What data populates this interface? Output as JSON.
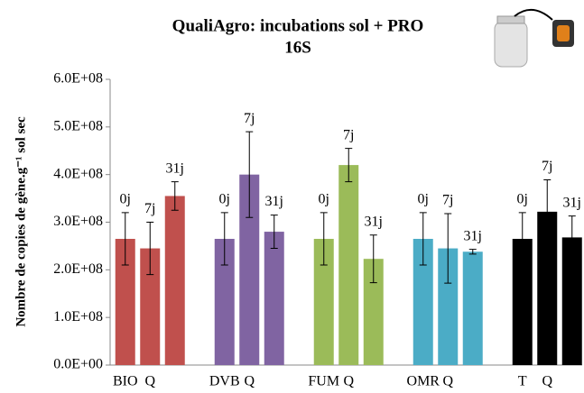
{
  "chart_data": {
    "type": "bar",
    "title": "QualiAgro:  incubations  sol + PRO",
    "subtitle": "16S",
    "ylabel": "Nombre de copies de gène.g⁻¹ sol sec",
    "categories": [
      "BIO",
      "Q",
      null,
      "DVB",
      "Q",
      null,
      "FUM",
      "Q",
      null,
      "OMR",
      "Q",
      null,
      "T",
      "Q",
      null
    ],
    "values": [
      265000000,
      245000000,
      355000000,
      265000000,
      400000000,
      280000000,
      265000000,
      420000000,
      223000000,
      265000000,
      245000000,
      238000000,
      265000000,
      322000000,
      268000000
    ],
    "errors": [
      55000000,
      55000000,
      30000000,
      55000000,
      90000000,
      35000000,
      55000000,
      35000000,
      50000000,
      55000000,
      73000000,
      5000000,
      55000000,
      67000000,
      45000000
    ],
    "bar_labels": [
      "0j",
      "7j",
      "31j",
      "0j",
      "7j",
      "31j",
      "0j",
      "7j",
      "31j",
      "0j",
      "7j",
      "31j",
      "0j",
      "7j",
      "31j"
    ],
    "colors": [
      "#c0504d",
      "#c0504d",
      "#c0504d",
      "#8064a2",
      "#8064a2",
      "#8064a2",
      "#9bbb59",
      "#9bbb59",
      "#9bbb59",
      "#4bacc6",
      "#4bacc6",
      "#4bacc6",
      "#000000",
      "#000000",
      "#000000"
    ],
    "ylim": [
      0,
      600000000
    ],
    "yticks": [
      {
        "value": 0,
        "label": "0.0E+00"
      },
      {
        "value": 100000000,
        "label": "1.0E+08"
      },
      {
        "value": 200000000,
        "label": "2.0E+08"
      },
      {
        "value": 300000000,
        "label": "3.0E+08"
      },
      {
        "value": 400000000,
        "label": "4.0E+08"
      },
      {
        "value": 500000000,
        "label": "5.0E+08"
      },
      {
        "value": 600000000,
        "label": "6.0E+08"
      }
    ],
    "grid": false
  }
}
